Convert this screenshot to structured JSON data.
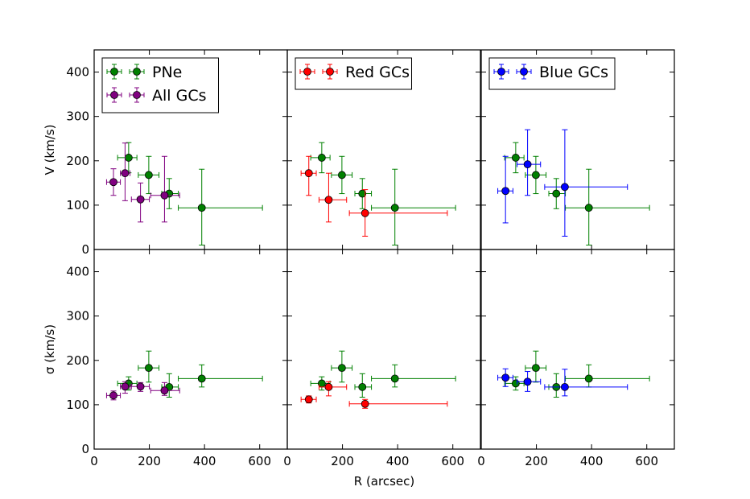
{
  "chart_data": {
    "type": "scatter",
    "xlabel": "R (arcsec)",
    "ylabels": [
      "V (km/s)",
      "σ (km/s)"
    ],
    "xlim": [
      0,
      700
    ],
    "ylim": [
      0,
      450
    ],
    "xticks": [
      0,
      200,
      400,
      600
    ],
    "yticks": [
      0,
      100,
      200,
      300,
      400
    ],
    "colors": {
      "PNe": "#008000",
      "All GCs": "#800080",
      "Red GCs": "#ff0000",
      "Blue GCs": "#0000ff"
    },
    "panels": [
      {
        "row": 0,
        "col": 0,
        "quantity": "V",
        "legend": [
          "PNe",
          "All GCs"
        ],
        "series": [
          {
            "name": "PNe",
            "points": [
              {
                "x": 125,
                "y": 207,
                "xlo": 85,
                "xhi": 155,
                "ylo": 173,
                "yhi": 241
              },
              {
                "x": 198,
                "y": 168,
                "xlo": 160,
                "xhi": 235,
                "ylo": 126,
                "yhi": 210
              },
              {
                "x": 272,
                "y": 126,
                "xlo": 245,
                "xhi": 305,
                "ylo": 92,
                "yhi": 160
              },
              {
                "x": 390,
                "y": 94,
                "xlo": 305,
                "xhi": 610,
                "ylo": 10,
                "yhi": 181
              }
            ]
          },
          {
            "name": "All GCs",
            "points": [
              {
                "x": 70,
                "y": 152,
                "xlo": 45,
                "xhi": 95,
                "ylo": 122,
                "yhi": 182
              },
              {
                "x": 112,
                "y": 172,
                "xlo": 95,
                "xhi": 130,
                "ylo": 110,
                "yhi": 240
              },
              {
                "x": 168,
                "y": 113,
                "xlo": 135,
                "xhi": 200,
                "ylo": 62,
                "yhi": 150
              },
              {
                "x": 255,
                "y": 122,
                "xlo": 205,
                "xhi": 310,
                "ylo": 62,
                "yhi": 210
              }
            ]
          }
        ]
      },
      {
        "row": 0,
        "col": 1,
        "quantity": "V",
        "legend": [
          "Red GCs"
        ],
        "series": [
          {
            "name": "PNe",
            "points": [
              {
                "x": 125,
                "y": 207,
                "xlo": 85,
                "xhi": 155,
                "ylo": 173,
                "yhi": 241
              },
              {
                "x": 198,
                "y": 168,
                "xlo": 160,
                "xhi": 235,
                "ylo": 126,
                "yhi": 210
              },
              {
                "x": 272,
                "y": 126,
                "xlo": 245,
                "xhi": 305,
                "ylo": 92,
                "yhi": 160
              },
              {
                "x": 390,
                "y": 94,
                "xlo": 305,
                "xhi": 610,
                "ylo": 10,
                "yhi": 181
              }
            ]
          },
          {
            "name": "Red GCs",
            "points": [
              {
                "x": 78,
                "y": 172,
                "xlo": 50,
                "xhi": 105,
                "ylo": 122,
                "yhi": 210
              },
              {
                "x": 150,
                "y": 112,
                "xlo": 115,
                "xhi": 215,
                "ylo": 62,
                "yhi": 172
              },
              {
                "x": 282,
                "y": 82,
                "xlo": 225,
                "xhi": 580,
                "ylo": 30,
                "yhi": 135
              }
            ]
          }
        ]
      },
      {
        "row": 0,
        "col": 2,
        "quantity": "V",
        "legend": [
          "Blue GCs"
        ],
        "series": [
          {
            "name": "PNe",
            "points": [
              {
                "x": 125,
                "y": 207,
                "xlo": 85,
                "xhi": 155,
                "ylo": 173,
                "yhi": 241
              },
              {
                "x": 198,
                "y": 168,
                "xlo": 160,
                "xhi": 235,
                "ylo": 126,
                "yhi": 210
              },
              {
                "x": 272,
                "y": 126,
                "xlo": 245,
                "xhi": 305,
                "ylo": 92,
                "yhi": 160
              },
              {
                "x": 390,
                "y": 94,
                "xlo": 305,
                "xhi": 610,
                "ylo": 10,
                "yhi": 181
              }
            ]
          },
          {
            "name": "Blue GCs",
            "points": [
              {
                "x": 88,
                "y": 132,
                "xlo": 60,
                "xhi": 115,
                "ylo": 60,
                "yhi": 210
              },
              {
                "x": 168,
                "y": 192,
                "xlo": 130,
                "xhi": 215,
                "ylo": 122,
                "yhi": 270
              },
              {
                "x": 303,
                "y": 141,
                "xlo": 230,
                "xhi": 530,
                "ylo": 30,
                "yhi": 270
              }
            ]
          }
        ]
      },
      {
        "row": 1,
        "col": 0,
        "quantity": "sigma",
        "legend": [],
        "series": [
          {
            "name": "PNe",
            "points": [
              {
                "x": 125,
                "y": 148,
                "xlo": 85,
                "xhi": 155,
                "ylo": 133,
                "yhi": 163
              },
              {
                "x": 198,
                "y": 183,
                "xlo": 160,
                "xhi": 235,
                "ylo": 151,
                "yhi": 221
              },
              {
                "x": 272,
                "y": 140,
                "xlo": 245,
                "xhi": 305,
                "ylo": 117,
                "yhi": 170
              },
              {
                "x": 390,
                "y": 159,
                "xlo": 305,
                "xhi": 610,
                "ylo": 140,
                "yhi": 190
              }
            ]
          },
          {
            "name": "All GCs",
            "points": [
              {
                "x": 70,
                "y": 121,
                "xlo": 45,
                "xhi": 95,
                "ylo": 111,
                "yhi": 131
              },
              {
                "x": 112,
                "y": 141,
                "xlo": 95,
                "xhi": 130,
                "ylo": 126,
                "yhi": 152
              },
              {
                "x": 168,
                "y": 141,
                "xlo": 135,
                "xhi": 200,
                "ylo": 130,
                "yhi": 150
              },
              {
                "x": 255,
                "y": 132,
                "xlo": 205,
                "xhi": 310,
                "ylo": 121,
                "yhi": 150
              }
            ]
          }
        ]
      },
      {
        "row": 1,
        "col": 1,
        "quantity": "sigma",
        "legend": [],
        "series": [
          {
            "name": "PNe",
            "points": [
              {
                "x": 125,
                "y": 148,
                "xlo": 85,
                "xhi": 155,
                "ylo": 133,
                "yhi": 163
              },
              {
                "x": 198,
                "y": 183,
                "xlo": 160,
                "xhi": 235,
                "ylo": 151,
                "yhi": 221
              },
              {
                "x": 272,
                "y": 140,
                "xlo": 245,
                "xhi": 305,
                "ylo": 117,
                "yhi": 170
              },
              {
                "x": 390,
                "y": 159,
                "xlo": 305,
                "xhi": 610,
                "ylo": 140,
                "yhi": 190
              }
            ]
          },
          {
            "name": "Red GCs",
            "points": [
              {
                "x": 78,
                "y": 112,
                "xlo": 50,
                "xhi": 105,
                "ylo": 104,
                "yhi": 120
              },
              {
                "x": 150,
                "y": 140,
                "xlo": 115,
                "xhi": 215,
                "ylo": 120,
                "yhi": 152
              },
              {
                "x": 282,
                "y": 102,
                "xlo": 225,
                "xhi": 580,
                "ylo": 92,
                "yhi": 112
              }
            ]
          }
        ]
      },
      {
        "row": 1,
        "col": 2,
        "quantity": "sigma",
        "legend": [],
        "series": [
          {
            "name": "PNe",
            "points": [
              {
                "x": 125,
                "y": 148,
                "xlo": 85,
                "xhi": 155,
                "ylo": 133,
                "yhi": 163
              },
              {
                "x": 198,
                "y": 183,
                "xlo": 160,
                "xhi": 235,
                "ylo": 151,
                "yhi": 221
              },
              {
                "x": 272,
                "y": 140,
                "xlo": 245,
                "xhi": 305,
                "ylo": 117,
                "yhi": 170
              },
              {
                "x": 390,
                "y": 159,
                "xlo": 305,
                "xhi": 610,
                "ylo": 140,
                "yhi": 190
              }
            ]
          },
          {
            "name": "Blue GCs",
            "points": [
              {
                "x": 88,
                "y": 161,
                "xlo": 60,
                "xhi": 115,
                "ylo": 141,
                "yhi": 181
              },
              {
                "x": 168,
                "y": 152,
                "xlo": 130,
                "xhi": 215,
                "ylo": 130,
                "yhi": 175
              },
              {
                "x": 303,
                "y": 140,
                "xlo": 230,
                "xhi": 530,
                "ylo": 120,
                "yhi": 180
              }
            ]
          }
        ]
      }
    ]
  }
}
